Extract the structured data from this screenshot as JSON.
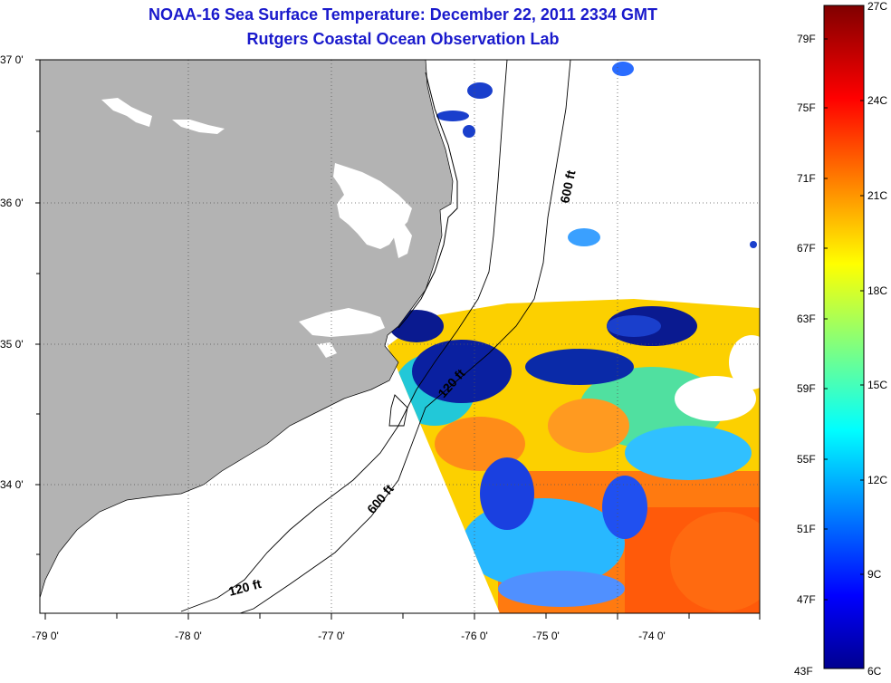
{
  "title": "NOAA-16 Sea Surface Temperature:  December 22, 2011 2334 GMT",
  "subtitle": "Rutgers Coastal Ocean Observation Lab",
  "lat_labels": [
    "37 0'",
    "36 0'",
    "35 0'",
    "34 0'"
  ],
  "lon_labels": [
    "-79 0'",
    "-78 0'",
    "-77 0'",
    "-76 0'",
    "-75 0'",
    "-74 0'"
  ],
  "contour_labels": {
    "shelf_600_north": "600 ft",
    "shelf_120_mid": "120 ft",
    "shelf_600_south": "600 ft",
    "shelf_120_south": "120 ft"
  },
  "colorbar": {
    "fahrenheit_labels": [
      "79F",
      "75F",
      "71F",
      "67F",
      "63F",
      "59F",
      "55F",
      "51F",
      "47F",
      "43F"
    ],
    "celsius_labels": [
      "27C",
      "24C",
      "21C",
      "18C",
      "15C",
      "12C",
      "9C",
      "6C"
    ],
    "min_c": 6,
    "max_c": 27,
    "colormap": "jet"
  },
  "colors": {
    "title": "#1a1acc",
    "land": "#b3b3b3",
    "cloud_mask": "#ffffff"
  }
}
